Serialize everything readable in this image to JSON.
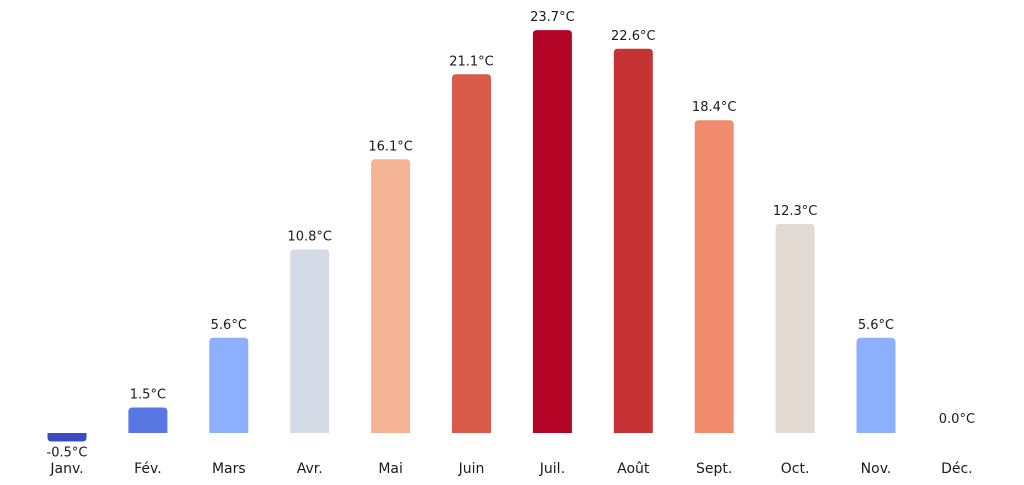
{
  "chart_data": {
    "type": "bar",
    "categories": [
      "Janv.",
      "Fév.",
      "Mars",
      "Avr.",
      "Mai",
      "Juin",
      "Juil.",
      "Août",
      "Sept.",
      "Oct.",
      "Nov.",
      "Déc."
    ],
    "values": [
      -0.5,
      1.5,
      5.6,
      10.8,
      16.1,
      21.1,
      23.7,
      22.6,
      18.4,
      12.3,
      5.6,
      0.0
    ],
    "value_labels": [
      "-0.5°C",
      "1.5°C",
      "5.6°C",
      "10.8°C",
      "16.1°C",
      "21.1°C",
      "23.7°C",
      "22.6°C",
      "18.4°C",
      "12.3°C",
      "5.6°C",
      "0.0°C"
    ],
    "colors": [
      "#3b4cc0",
      "#5977e3",
      "#8db0fe",
      "#d4dbe6",
      "#f5b396",
      "#d85a48",
      "#b40426",
      "#c53334",
      "#f08b6e",
      "#e3d9d3",
      "#8db0fe",
      "#3b4cc0"
    ],
    "title": "",
    "xlabel": "",
    "ylabel": "",
    "ylim": [
      -0.5,
      23.7
    ],
    "grid": false,
    "legend": "none",
    "y_axis_visible": false
  }
}
